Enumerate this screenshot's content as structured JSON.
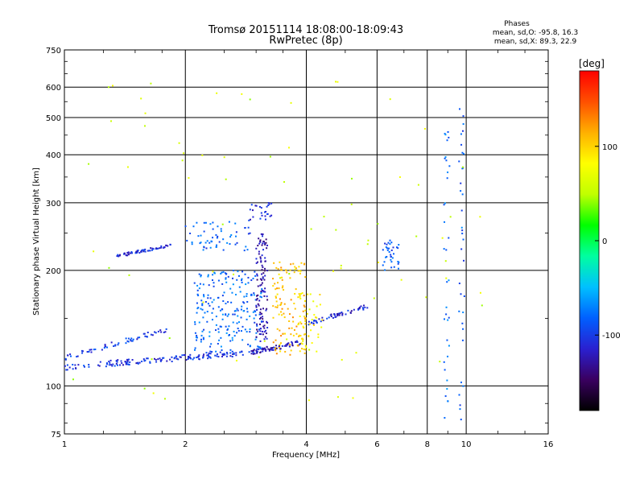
{
  "header": {
    "title_line1": "Tromsø 20151114 18:08:00-18:09:43",
    "title_line2": "RwPretec (8p)"
  },
  "stats": {
    "heading": "Phases",
    "line_o": "mean, sd,O: -95.8, 16.3",
    "line_x": "mean, sd,X:  89.3, 22.9"
  },
  "colorbar": {
    "unit_label": "[deg]",
    "ticks": [
      {
        "value": 100,
        "label": "100"
      },
      {
        "value": 0,
        "label": "0"
      },
      {
        "value": -100,
        "label": "-100"
      }
    ],
    "range": [
      -180,
      180
    ],
    "colormap": [
      "#000000",
      "#3a0060",
      "#2a20d0",
      "#0060ff",
      "#00c0ff",
      "#00ffa0",
      "#00ff00",
      "#c0ff00",
      "#ffff00",
      "#ffb000",
      "#ff5000",
      "#ff0000"
    ]
  },
  "chart_data": {
    "type": "scatter",
    "title": "Tromsø 20151114 18:08:00-18:09:43",
    "subtitle": "RwPretec (8p)",
    "xlabel": "Frequency [MHz]",
    "ylabel": "Stationary phase Virtual Height [km]",
    "xscale": "log2",
    "yscale": "log",
    "xlim": [
      1,
      16
    ],
    "ylim": [
      75,
      750
    ],
    "x_ticks": [
      1,
      2,
      4,
      6,
      8,
      10,
      16
    ],
    "x_tick_labels": [
      "1",
      "2",
      "4",
      "6",
      "8",
      "10",
      "16"
    ],
    "y_ticks": [
      75,
      100,
      200,
      300,
      400,
      500,
      600,
      750
    ],
    "y_tick_labels": [
      "75",
      "100",
      "200",
      "300",
      "400",
      "500",
      "600",
      "750"
    ],
    "grid": true,
    "color_variable": "phase [deg]",
    "traces": [
      {
        "name": "",
        "x_range": [
          1.0,
          2.9
        ],
        "height_range": [
          112,
          122
        ],
        "phase_deg": -105,
        "count": 150
      },
      {
        "name": "",
        "x_range": [
          2.9,
          3.9
        ],
        "height_range": [
          122,
          130
        ],
        "phase_deg": -120,
        "count": 70
      },
      {
        "name": "",
        "x_range": [
          1.35,
          1.85
        ],
        "height_range": [
          218,
          232
        ],
        "phase_deg": -110,
        "count": 60
      },
      {
        "name": "",
        "x_range": [
          2.0,
          2.9
        ],
        "height_range": [
          225,
          270
        ],
        "phase_deg": -85,
        "count": 60
      },
      {
        "name": "",
        "x_range": [
          2.9,
          3.3
        ],
        "height_range": [
          270,
          300
        ],
        "phase_deg": -110,
        "count": 25
      },
      {
        "name": "",
        "x_range": [
          4.0,
          5.8
        ],
        "height_range": [
          145,
          162
        ],
        "phase_deg": -110,
        "count": 60
      },
      {
        "name": "",
        "x_range": [
          1.0,
          1.8
        ],
        "height_range": [
          118,
          140
        ],
        "phase_deg": -100,
        "count": 60
      },
      {
        "name": "",
        "x_range": [
          2.1,
          3.1
        ],
        "height_range": [
          122,
          200
        ],
        "phase_deg": -80,
        "count": 220
      },
      {
        "name": "",
        "x_range": [
          3.0,
          3.2
        ],
        "height_range": [
          130,
          250
        ],
        "phase_deg": -125,
        "count": 110
      },
      {
        "name": "",
        "x_range": [
          3.3,
          4.0
        ],
        "height_range": [
          118,
          210
        ],
        "phase_deg": 110,
        "count": 120
      },
      {
        "name": "",
        "x_range": [
          3.8,
          4.4
        ],
        "height_range": [
          122,
          175
        ],
        "phase_deg": 85,
        "count": 45
      },
      {
        "name": "",
        "x_range": [
          6.2,
          6.8
        ],
        "height_range": [
          200,
          240
        ],
        "phase_deg": -90,
        "count": 35
      },
      {
        "name": "",
        "x_range": [
          8.8,
          9.1
        ],
        "height_range": [
          80,
          560
        ],
        "phase_deg": -75,
        "count": 35
      },
      {
        "name": "",
        "x_range": [
          9.6,
          9.9
        ],
        "height_range": [
          80,
          560
        ],
        "phase_deg": -85,
        "count": 35
      },
      {
        "name": "",
        "x_range": [
          1.0,
          11.0
        ],
        "height_range": [
          85,
          620
        ],
        "phase_deg": 60,
        "count": 80
      }
    ]
  }
}
